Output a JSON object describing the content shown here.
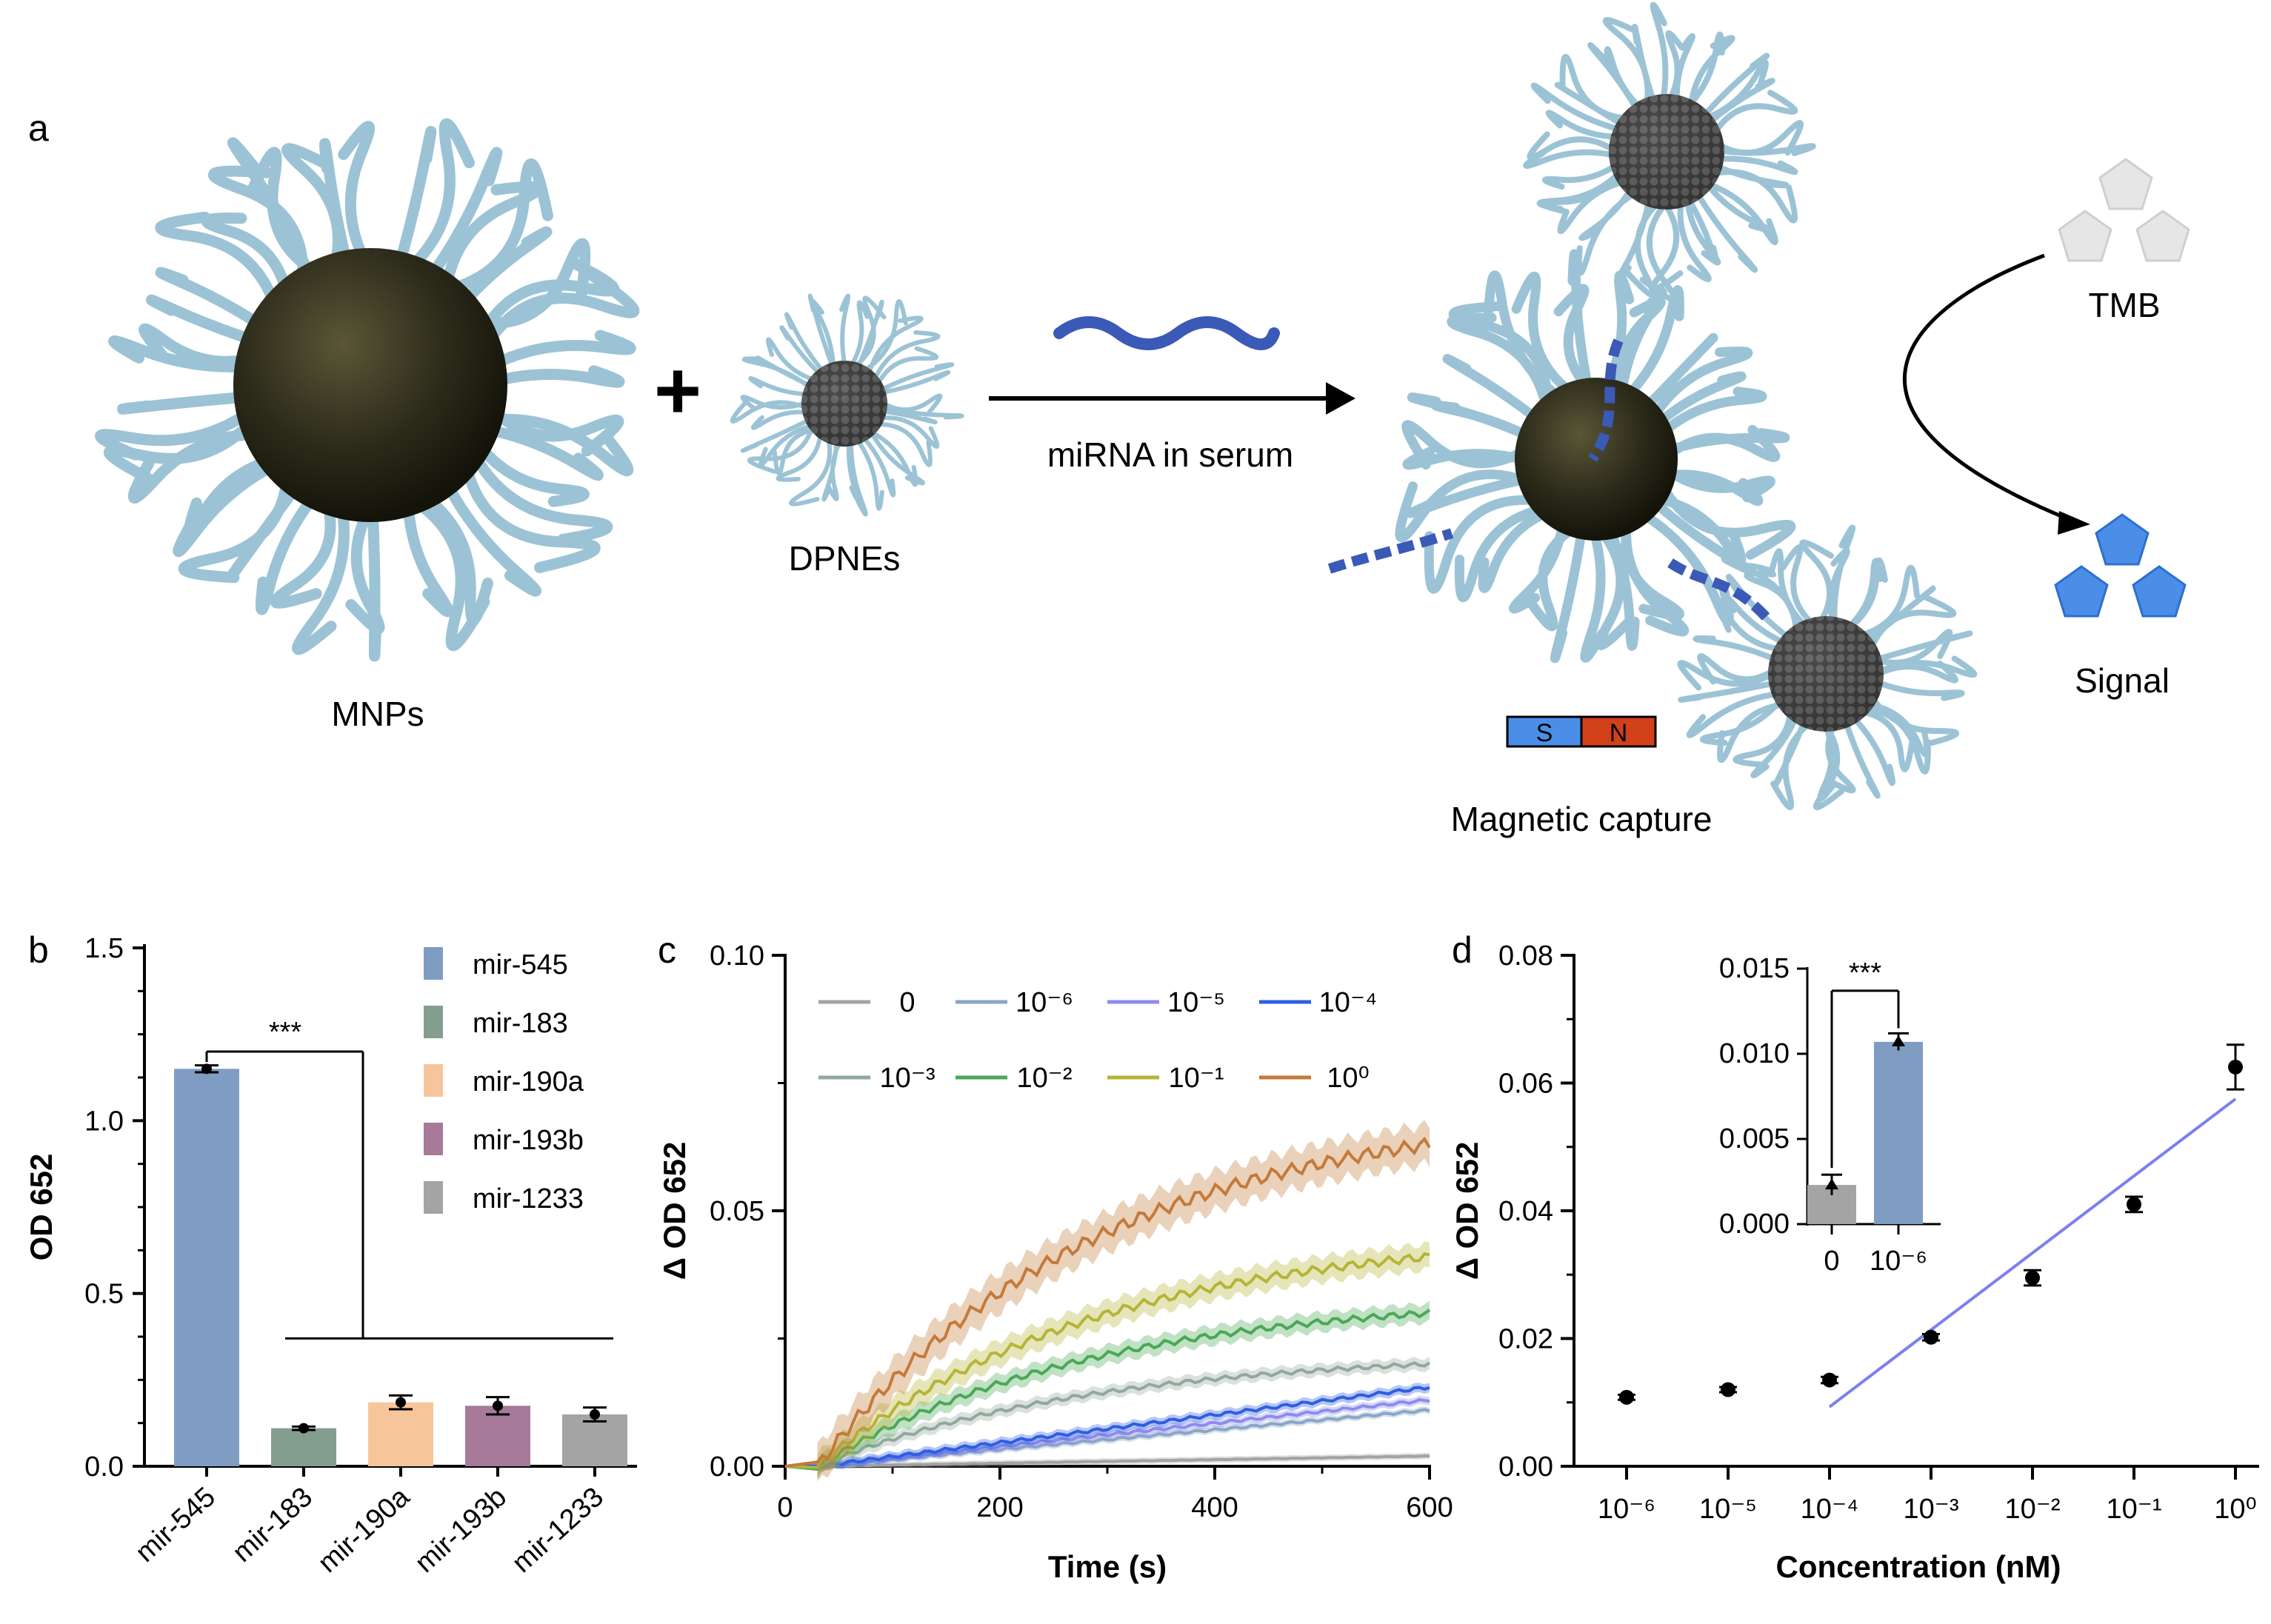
{
  "panel_a": {
    "label": "a",
    "mnps": "MNPs",
    "plus": "+",
    "dpnes": "DPNEs",
    "arrow_label": "miRNA in serum",
    "magnet_s": "S",
    "magnet_n": "N",
    "capture": "Magnetic capture",
    "tmb": "TMB",
    "signal": "Signal",
    "colors": {
      "core": "#2b2a1a",
      "ligand": "#9cc3d5",
      "mirna": "#3b59b6",
      "product": "#4a8ee8",
      "tmb": "#e0e0e0"
    }
  },
  "panel_b": {
    "label": "b"
  },
  "panel_c": {
    "label": "c"
  },
  "panel_d": {
    "label": "d"
  },
  "chart_data": [
    {
      "id": "b",
      "type": "bar",
      "categories": [
        "mir-545",
        "mir-183",
        "mir-190a",
        "mir-193b",
        "mir-1233"
      ],
      "values": [
        1.15,
        0.11,
        0.185,
        0.175,
        0.15
      ],
      "errors": [
        0.01,
        0.005,
        0.02,
        0.025,
        0.02
      ],
      "colors": [
        "#7f9cc2",
        "#839e8e",
        "#f7c59b",
        "#a67a98",
        "#a4a4a4"
      ],
      "ylabel": "OD 652",
      "yticks": [
        "0.0",
        "0.5",
        "1.0",
        "1.5"
      ],
      "ylim": [
        0,
        1.5
      ],
      "significance": "***",
      "legend": [
        "mir-545",
        "mir-183",
        "mir-190a",
        "mir-193b",
        "mir-1233"
      ]
    },
    {
      "id": "c",
      "type": "line",
      "xlabel": "Time (s)",
      "ylabel": "Δ OD 652",
      "xlim": [
        0,
        600
      ],
      "ylim": [
        0,
        0.1
      ],
      "xticks": [
        "0",
        "200",
        "400",
        "600"
      ],
      "yticks": [
        "0.00",
        "0.05",
        "0.10"
      ],
      "series": [
        {
          "name": "0",
          "color": "#a3a3a3",
          "final": 0.002
        },
        {
          "name": "10⁻⁶",
          "color": "#8aa6c7",
          "final": 0.011
        },
        {
          "name": "10⁻⁵",
          "color": "#8c8cef",
          "final": 0.013
        },
        {
          "name": "10⁻⁴",
          "color": "#2f5ee0",
          "final": 0.0155
        },
        {
          "name": "10⁻³",
          "color": "#93a89d",
          "final": 0.02
        },
        {
          "name": "10⁻²",
          "color": "#4aa857",
          "final": 0.03
        },
        {
          "name": "10⁻¹",
          "color": "#b6b436",
          "final": 0.041
        },
        {
          "name": "10⁰",
          "color": "#c47a3a",
          "final": 0.063
        }
      ]
    },
    {
      "id": "d",
      "type": "scatter",
      "xlabel": "Concentration (nM)",
      "ylabel": "Δ OD 652",
      "x": [
        "10⁻⁶",
        "10⁻⁵",
        "10⁻⁴",
        "10⁻³",
        "10⁻²",
        "10⁻¹",
        "10⁰"
      ],
      "y": [
        0.0108,
        0.012,
        0.0135,
        0.0202,
        0.0295,
        0.041,
        0.0625
      ],
      "errors": [
        0.0004,
        0.0004,
        0.0005,
        0.0005,
        0.0012,
        0.0012,
        0.0035
      ],
      "ylim": [
        0,
        0.08
      ],
      "yticks": [
        "0.00",
        "0.02",
        "0.04",
        "0.06",
        "0.08"
      ],
      "fit": {
        "x_from_index": 2,
        "x_to_index": 6,
        "y_from": 0.0093,
        "y_to": 0.0575,
        "color": "#7b7ff0"
      },
      "inset": {
        "type": "bar",
        "categories": [
          "0",
          "10⁻⁶"
        ],
        "values": [
          0.0023,
          0.0107
        ],
        "errors": [
          0.0006,
          0.0005
        ],
        "colors": [
          "#a4a4a4",
          "#7f9cc2"
        ],
        "ylim": [
          0,
          0.015
        ],
        "yticks": [
          "0.000",
          "0.005",
          "0.010",
          "0.015"
        ],
        "significance": "***"
      }
    }
  ]
}
